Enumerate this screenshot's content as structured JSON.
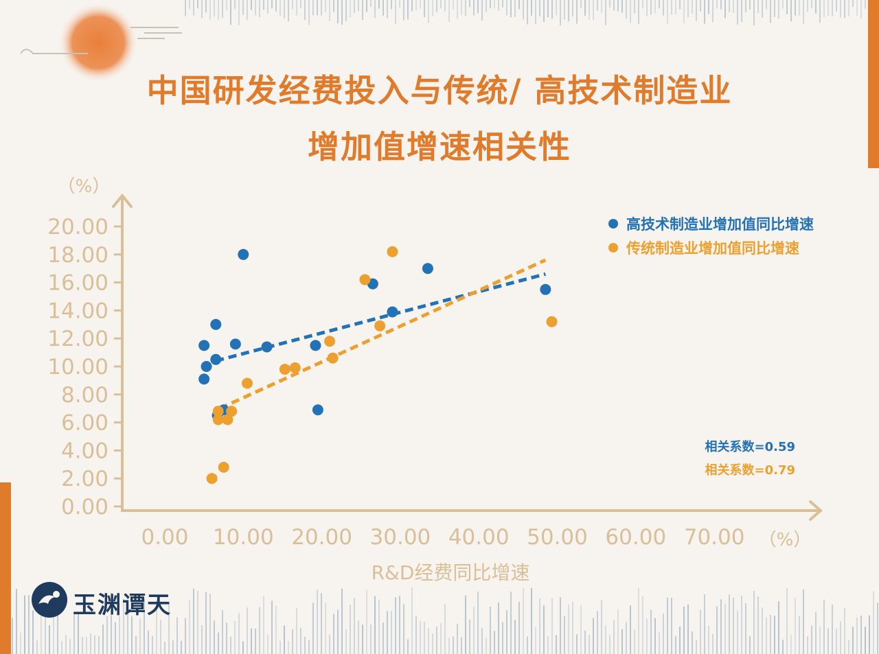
{
  "title_line1": "中国研发经费投入与传统/ 高技术制造业",
  "title_line2": "增加值增速相关性",
  "logo_text": "玉渊谭天",
  "colors": {
    "blue": "#2272b5",
    "orange": "#eca02f",
    "axis": "#d9bf98",
    "title": "#e07b2c",
    "accent": "#e07b2c"
  },
  "chart_data": {
    "type": "scatter",
    "xlabel": "R&D经费同比增速",
    "x_unit": "（%）",
    "y_unit": "（%）",
    "x_ticks": [
      "0.00",
      "10.00",
      "20.00",
      "30.00",
      "40.00",
      "50.00",
      "60.00",
      "70.00"
    ],
    "y_ticks": [
      "0.00",
      "2.00",
      "4.00",
      "6.00",
      "8.00",
      "10.00",
      "12.00",
      "14.00",
      "16.00",
      "18.00",
      "20.00"
    ],
    "xlim": [
      0,
      70
    ],
    "ylim": [
      0,
      20
    ],
    "grid": false,
    "legend_position": "top-right",
    "series": [
      {
        "name": "高技术制造业增加值同比增速",
        "color": "#2272b5",
        "points": [
          [
            5.0,
            11.5
          ],
          [
            5.0,
            9.1
          ],
          [
            5.3,
            10.0
          ],
          [
            6.5,
            13.0
          ],
          [
            6.5,
            10.5
          ],
          [
            6.7,
            6.5
          ],
          [
            7.5,
            6.9
          ],
          [
            9.0,
            11.6
          ],
          [
            10.0,
            18.0
          ],
          [
            13.0,
            11.4
          ],
          [
            19.2,
            11.5
          ],
          [
            19.5,
            6.9
          ],
          [
            26.5,
            15.9
          ],
          [
            29.0,
            13.9
          ],
          [
            33.5,
            17.0
          ],
          [
            48.5,
            15.5
          ]
        ],
        "trend": {
          "from": [
            6.5,
            10.4
          ],
          "to": [
            48.5,
            16.6
          ]
        },
        "correlation": "相关系数=0.59"
      },
      {
        "name": "传统制造业增加值同比增速",
        "color": "#eca02f",
        "points": [
          [
            6.0,
            2.0
          ],
          [
            6.8,
            6.8
          ],
          [
            6.8,
            6.2
          ],
          [
            7.5,
            2.8
          ],
          [
            8.0,
            6.2
          ],
          [
            8.5,
            6.8
          ],
          [
            10.5,
            8.8
          ],
          [
            15.3,
            9.8
          ],
          [
            16.6,
            9.9
          ],
          [
            21.0,
            11.8
          ],
          [
            21.4,
            10.6
          ],
          [
            25.5,
            16.2
          ],
          [
            27.4,
            12.9
          ],
          [
            29.0,
            18.2
          ],
          [
            49.3,
            13.2
          ]
        ],
        "trend": {
          "from": [
            7.0,
            7.0
          ],
          "to": [
            48.5,
            17.6
          ]
        },
        "correlation": "相关系数=0.79"
      }
    ]
  }
}
